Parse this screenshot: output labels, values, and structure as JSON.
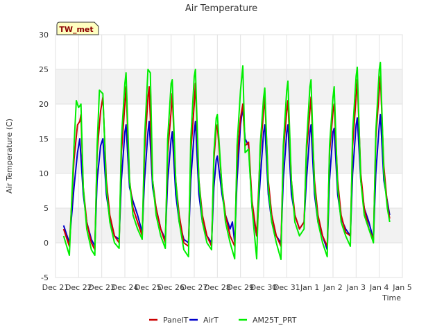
{
  "chart_data": {
    "type": "line",
    "title": "Air Temperature",
    "xlabel": "Time",
    "ylabel": "Air Temperature (C)",
    "station_label": "TW_met",
    "ylim": [
      -5,
      30
    ],
    "y_ticks": [
      -5,
      0,
      5,
      10,
      15,
      20,
      25,
      30
    ],
    "xlim": [
      0,
      15
    ],
    "x_ticks": [
      {
        "x": 0,
        "label": "Dec 21"
      },
      {
        "x": 1,
        "label": "Dec 22"
      },
      {
        "x": 2,
        "label": "Dec 23"
      },
      {
        "x": 3,
        "label": "Dec 24"
      },
      {
        "x": 4,
        "label": "Dec 25"
      },
      {
        "x": 5,
        "label": "Dec 26"
      },
      {
        "x": 6,
        "label": "Dec 27"
      },
      {
        "x": 7,
        "label": "Dec 28"
      },
      {
        "x": 8,
        "label": "Dec 29"
      },
      {
        "x": 9,
        "label": "Dec 30"
      },
      {
        "x": 10,
        "label": "Dec 31"
      },
      {
        "x": 11,
        "label": "Jan 1"
      },
      {
        "x": 12,
        "label": "Jan 2"
      },
      {
        "x": 13,
        "label": "Jan 3"
      },
      {
        "x": 14,
        "label": "Jan 4"
      },
      {
        "x": 15,
        "label": "Jan 5"
      }
    ],
    "grid": true,
    "legend_position": "bottom",
    "series": [
      {
        "name": "PanelT",
        "color": "#cc0000",
        "points": [
          [
            0.35,
            2.0
          ],
          [
            0.6,
            -0.5
          ],
          [
            0.8,
            12.0
          ],
          [
            0.95,
            17.0
          ],
          [
            1.05,
            17.5
          ],
          [
            1.1,
            18.5
          ],
          [
            1.2,
            8.0
          ],
          [
            1.35,
            3.0
          ],
          [
            1.55,
            0.0
          ],
          [
            1.7,
            -1.0
          ],
          [
            1.8,
            13.0
          ],
          [
            1.95,
            19.0
          ],
          [
            2.05,
            21.0
          ],
          [
            2.2,
            9.0
          ],
          [
            2.35,
            4.0
          ],
          [
            2.55,
            1.0
          ],
          [
            2.75,
            0.0
          ],
          [
            2.85,
            13.0
          ],
          [
            3.0,
            20.0
          ],
          [
            3.05,
            22.5
          ],
          [
            3.2,
            9.0
          ],
          [
            3.35,
            5.0
          ],
          [
            3.55,
            3.0
          ],
          [
            3.75,
            1.0
          ],
          [
            3.85,
            13.0
          ],
          [
            4.0,
            21.0
          ],
          [
            4.05,
            22.5
          ],
          [
            4.2,
            9.0
          ],
          [
            4.35,
            5.0
          ],
          [
            4.55,
            2.0
          ],
          [
            4.75,
            0.0
          ],
          [
            4.85,
            13.0
          ],
          [
            5.0,
            19.0
          ],
          [
            5.05,
            21.5
          ],
          [
            5.2,
            9.0
          ],
          [
            5.35,
            4.0
          ],
          [
            5.55,
            0.0
          ],
          [
            5.75,
            -0.5
          ],
          [
            5.85,
            13.0
          ],
          [
            6.0,
            20.0
          ],
          [
            6.05,
            23.0
          ],
          [
            6.2,
            9.0
          ],
          [
            6.35,
            4.0
          ],
          [
            6.55,
            1.0
          ],
          [
            6.75,
            -0.5
          ],
          [
            6.85,
            12.0
          ],
          [
            6.95,
            16.5
          ],
          [
            7.0,
            17.0
          ],
          [
            7.2,
            8.0
          ],
          [
            7.35,
            4.0
          ],
          [
            7.55,
            1.0
          ],
          [
            7.75,
            -0.5
          ],
          [
            7.85,
            12.0
          ],
          [
            8.0,
            18.0
          ],
          [
            8.1,
            20.0
          ],
          [
            8.2,
            14.0
          ],
          [
            8.35,
            14.5
          ],
          [
            8.5,
            6.0
          ],
          [
            8.7,
            1.0
          ],
          [
            8.85,
            13.0
          ],
          [
            9.0,
            19.0
          ],
          [
            9.05,
            21.0
          ],
          [
            9.2,
            9.0
          ],
          [
            9.35,
            4.0
          ],
          [
            9.55,
            1.0
          ],
          [
            9.75,
            -0.5
          ],
          [
            9.85,
            13.0
          ],
          [
            10.0,
            19.0
          ],
          [
            10.05,
            20.5
          ],
          [
            10.2,
            9.0
          ],
          [
            10.35,
            4.0
          ],
          [
            10.55,
            2.0
          ],
          [
            10.75,
            3.0
          ],
          [
            10.85,
            13.0
          ],
          [
            11.0,
            19.0
          ],
          [
            11.05,
            21.0
          ],
          [
            11.2,
            9.0
          ],
          [
            11.35,
            4.0
          ],
          [
            11.55,
            1.0
          ],
          [
            11.75,
            -0.5
          ],
          [
            11.85,
            13.0
          ],
          [
            12.0,
            19.0
          ],
          [
            12.05,
            20.0
          ],
          [
            12.2,
            9.0
          ],
          [
            12.35,
            4.0
          ],
          [
            12.55,
            1.5
          ],
          [
            12.75,
            1.0
          ],
          [
            12.85,
            14.0
          ],
          [
            13.0,
            21.0
          ],
          [
            13.05,
            23.5
          ],
          [
            13.2,
            10.0
          ],
          [
            13.35,
            5.0
          ],
          [
            13.55,
            2.0
          ],
          [
            13.75,
            0.5
          ],
          [
            13.85,
            15.0
          ],
          [
            14.0,
            22.0
          ],
          [
            14.05,
            24.0
          ],
          [
            14.2,
            11.0
          ],
          [
            14.35,
            5.5
          ],
          [
            14.45,
            3.5
          ]
        ]
      },
      {
        "name": "AirT",
        "color": "#0000cc",
        "points": [
          [
            0.35,
            2.5
          ],
          [
            0.6,
            0.0
          ],
          [
            0.8,
            8.0
          ],
          [
            0.95,
            13.0
          ],
          [
            1.05,
            15.0
          ],
          [
            1.2,
            7.0
          ],
          [
            1.35,
            3.0
          ],
          [
            1.55,
            0.5
          ],
          [
            1.7,
            -0.5
          ],
          [
            1.8,
            9.0
          ],
          [
            1.95,
            14.0
          ],
          [
            2.05,
            15.0
          ],
          [
            2.2,
            7.0
          ],
          [
            2.35,
            3.5
          ],
          [
            2.55,
            1.0
          ],
          [
            2.75,
            0.5
          ],
          [
            2.85,
            9.0
          ],
          [
            3.0,
            16.0
          ],
          [
            3.05,
            17.0
          ],
          [
            3.2,
            8.0
          ],
          [
            3.35,
            6.0
          ],
          [
            3.55,
            4.0
          ],
          [
            3.75,
            1.5
          ],
          [
            3.85,
            9.0
          ],
          [
            4.0,
            16.0
          ],
          [
            4.05,
            17.5
          ],
          [
            4.2,
            8.0
          ],
          [
            4.35,
            5.0
          ],
          [
            4.55,
            2.0
          ],
          [
            4.75,
            0.5
          ],
          [
            4.85,
            9.0
          ],
          [
            5.0,
            15.0
          ],
          [
            5.05,
            16.0
          ],
          [
            5.2,
            7.0
          ],
          [
            5.35,
            3.0
          ],
          [
            5.55,
            0.5
          ],
          [
            5.75,
            0.0
          ],
          [
            5.85,
            9.0
          ],
          [
            6.0,
            16.0
          ],
          [
            6.05,
            17.5
          ],
          [
            6.2,
            7.0
          ],
          [
            6.35,
            3.0
          ],
          [
            6.55,
            1.0
          ],
          [
            6.75,
            0.0
          ],
          [
            6.85,
            8.0
          ],
          [
            6.95,
            12.0
          ],
          [
            7.0,
            12.5
          ],
          [
            7.2,
            7.0
          ],
          [
            7.35,
            4.0
          ],
          [
            7.55,
            2.0
          ],
          [
            7.65,
            3.0
          ],
          [
            7.75,
            0.0
          ],
          [
            7.85,
            9.0
          ],
          [
            8.0,
            17.0
          ],
          [
            8.1,
            19.5
          ],
          [
            8.2,
            15.0
          ],
          [
            8.35,
            14.0
          ],
          [
            8.5,
            5.0
          ],
          [
            8.7,
            1.0
          ],
          [
            8.85,
            9.0
          ],
          [
            9.0,
            16.0
          ],
          [
            9.05,
            17.0
          ],
          [
            9.2,
            7.0
          ],
          [
            9.35,
            3.0
          ],
          [
            9.55,
            1.0
          ],
          [
            9.75,
            0.0
          ],
          [
            9.85,
            9.0
          ],
          [
            10.0,
            16.0
          ],
          [
            10.05,
            17.0
          ],
          [
            10.2,
            7.0
          ],
          [
            10.35,
            4.0
          ],
          [
            10.55,
            2.0
          ],
          [
            10.75,
            3.0
          ],
          [
            10.85,
            9.0
          ],
          [
            11.0,
            16.0
          ],
          [
            11.05,
            17.0
          ],
          [
            11.2,
            7.0
          ],
          [
            11.35,
            3.0
          ],
          [
            11.55,
            1.0
          ],
          [
            11.75,
            -1.0
          ],
          [
            11.85,
            9.0
          ],
          [
            12.0,
            16.0
          ],
          [
            12.05,
            16.5
          ],
          [
            12.2,
            7.0
          ],
          [
            12.35,
            3.5
          ],
          [
            12.55,
            2.0
          ],
          [
            12.75,
            1.0
          ],
          [
            12.85,
            10.0
          ],
          [
            13.0,
            17.0
          ],
          [
            13.05,
            18.0
          ],
          [
            13.2,
            9.0
          ],
          [
            13.35,
            5.0
          ],
          [
            13.55,
            3.0
          ],
          [
            13.75,
            0.5
          ],
          [
            13.85,
            10.0
          ],
          [
            14.0,
            17.0
          ],
          [
            14.05,
            18.5
          ],
          [
            14.2,
            9.0
          ],
          [
            14.35,
            6.0
          ],
          [
            14.45,
            4.0
          ]
        ]
      },
      {
        "name": "AM25T_PRT",
        "color": "#00ee00",
        "points": [
          [
            0.35,
            1.0
          ],
          [
            0.6,
            -1.8
          ],
          [
            0.8,
            14.0
          ],
          [
            0.9,
            20.5
          ],
          [
            1.0,
            19.5
          ],
          [
            1.1,
            20.0
          ],
          [
            1.2,
            8.0
          ],
          [
            1.35,
            2.0
          ],
          [
            1.55,
            -1.0
          ],
          [
            1.7,
            -1.8
          ],
          [
            1.8,
            14.0
          ],
          [
            1.9,
            22.0
          ],
          [
            2.05,
            21.5
          ],
          [
            2.2,
            8.0
          ],
          [
            2.35,
            3.0
          ],
          [
            2.55,
            0.0
          ],
          [
            2.75,
            -0.8
          ],
          [
            2.85,
            15.0
          ],
          [
            3.0,
            23.0
          ],
          [
            3.05,
            24.5
          ],
          [
            3.2,
            9.0
          ],
          [
            3.35,
            4.0
          ],
          [
            3.55,
            2.0
          ],
          [
            3.75,
            0.5
          ],
          [
            3.85,
            15.0
          ],
          [
            4.0,
            25.0
          ],
          [
            4.1,
            24.5
          ],
          [
            4.2,
            9.0
          ],
          [
            4.35,
            4.0
          ],
          [
            4.55,
            1.0
          ],
          [
            4.75,
            -0.8
          ],
          [
            4.85,
            15.0
          ],
          [
            5.0,
            23.0
          ],
          [
            5.05,
            23.5
          ],
          [
            5.2,
            9.0
          ],
          [
            5.35,
            3.0
          ],
          [
            5.55,
            -1.0
          ],
          [
            5.75,
            -2.0
          ],
          [
            5.85,
            15.0
          ],
          [
            6.0,
            24.0
          ],
          [
            6.05,
            25.0
          ],
          [
            6.2,
            9.0
          ],
          [
            6.35,
            3.0
          ],
          [
            6.55,
            0.0
          ],
          [
            6.75,
            -1.0
          ],
          [
            6.85,
            13.0
          ],
          [
            6.95,
            18.0
          ],
          [
            7.0,
            18.5
          ],
          [
            7.2,
            8.0
          ],
          [
            7.35,
            3.0
          ],
          [
            7.55,
            0.0
          ],
          [
            7.75,
            -2.3
          ],
          [
            7.85,
            14.0
          ],
          [
            8.0,
            22.0
          ],
          [
            8.1,
            25.5
          ],
          [
            8.2,
            13.0
          ],
          [
            8.35,
            13.5
          ],
          [
            8.5,
            5.0
          ],
          [
            8.7,
            -2.3
          ],
          [
            8.85,
            14.0
          ],
          [
            9.0,
            21.0
          ],
          [
            9.05,
            22.3
          ],
          [
            9.2,
            8.0
          ],
          [
            9.35,
            3.0
          ],
          [
            9.55,
            0.0
          ],
          [
            9.75,
            -2.4
          ],
          [
            9.85,
            14.0
          ],
          [
            10.0,
            22.0
          ],
          [
            10.05,
            23.3
          ],
          [
            10.2,
            9.0
          ],
          [
            10.35,
            3.0
          ],
          [
            10.55,
            1.0
          ],
          [
            10.75,
            2.0
          ],
          [
            10.85,
            14.0
          ],
          [
            11.0,
            22.5
          ],
          [
            11.05,
            23.5
          ],
          [
            11.2,
            8.0
          ],
          [
            11.35,
            3.0
          ],
          [
            11.55,
            0.0
          ],
          [
            11.75,
            -2.0
          ],
          [
            11.85,
            14.0
          ],
          [
            12.0,
            21.0
          ],
          [
            12.05,
            22.5
          ],
          [
            12.2,
            8.0
          ],
          [
            12.35,
            3.0
          ],
          [
            12.55,
            1.0
          ],
          [
            12.75,
            -0.5
          ],
          [
            12.85,
            16.0
          ],
          [
            13.0,
            24.0
          ],
          [
            13.05,
            25.3
          ],
          [
            13.2,
            9.0
          ],
          [
            13.35,
            4.0
          ],
          [
            13.55,
            2.0
          ],
          [
            13.75,
            0.0
          ],
          [
            13.85,
            16.0
          ],
          [
            14.0,
            25.0
          ],
          [
            14.05,
            26.0
          ],
          [
            14.2,
            10.0
          ],
          [
            14.35,
            5.0
          ],
          [
            14.45,
            3.0
          ]
        ]
      }
    ]
  }
}
